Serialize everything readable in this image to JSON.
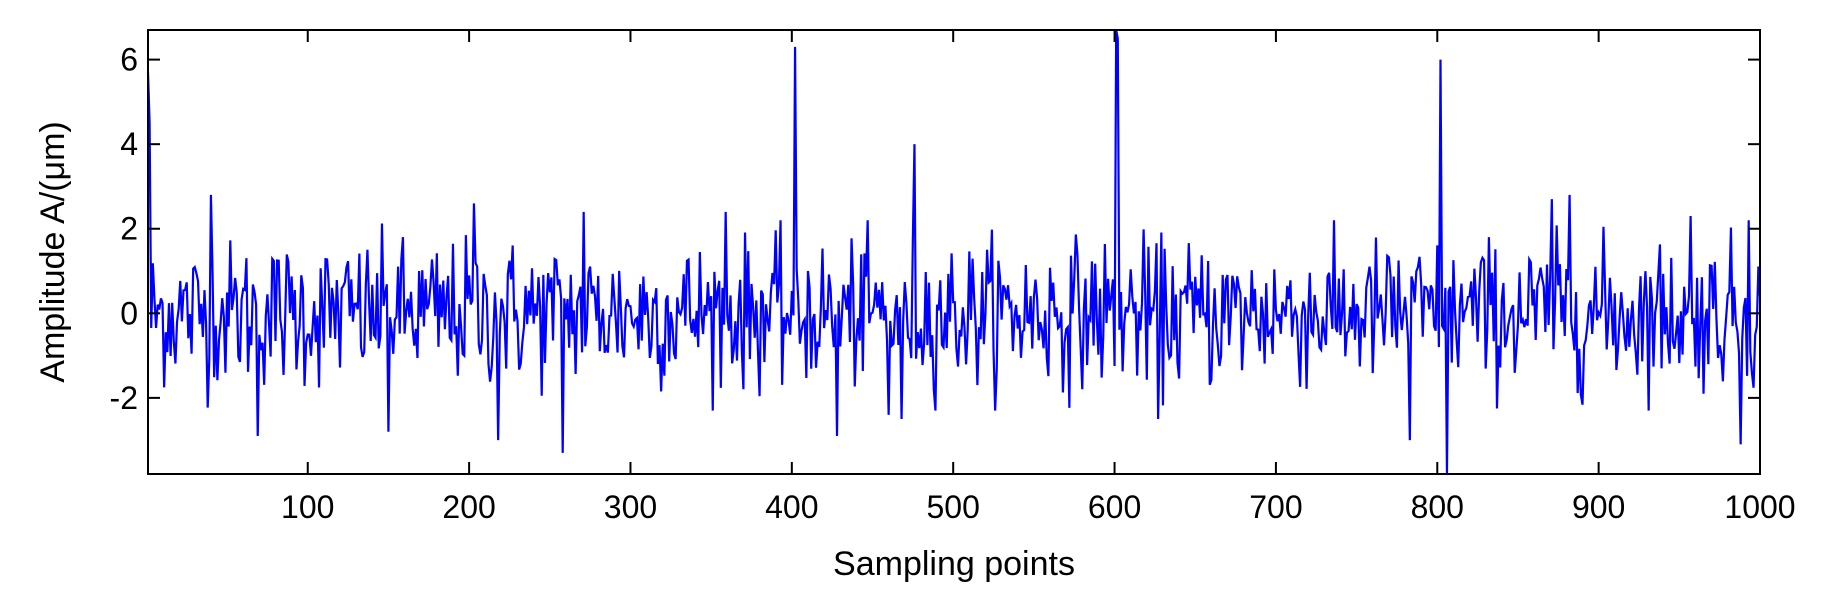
{
  "chart_data": {
    "type": "line",
    "xlabel": "Sampling points",
    "ylabel": "Amplitude A/(μm)",
    "xlim": [
      1,
      1000
    ],
    "ylim": [
      -3.8,
      6.7
    ],
    "xticks": [
      100,
      200,
      300,
      400,
      500,
      600,
      700,
      800,
      900,
      1000
    ],
    "yticks": [
      -2,
      0,
      2,
      4,
      6
    ],
    "grid": false,
    "legend": "none",
    "line_color": "#0000ff",
    "noise_amplitude_typical": 1.0,
    "series": [
      {
        "spikes": [
          {
            "x": 1,
            "y": 5.7
          },
          {
            "x": 2,
            "y": 4.5
          },
          {
            "x": 402,
            "y": 6.3
          },
          {
            "x": 476,
            "y": 4.0
          },
          {
            "x": 601,
            "y": 6.7
          },
          {
            "x": 602,
            "y": 6.5
          },
          {
            "x": 802,
            "y": 6.0
          },
          {
            "x": 806,
            "y": -3.8
          },
          {
            "x": 258,
            "y": -3.3
          },
          {
            "x": 428,
            "y": -2.9
          },
          {
            "x": 69,
            "y": -2.9
          },
          {
            "x": 783,
            "y": -3.0
          },
          {
            "x": 988,
            "y": -3.1
          },
          {
            "x": 40,
            "y": 2.8
          },
          {
            "x": 203,
            "y": 2.6
          },
          {
            "x": 271,
            "y": 2.4
          },
          {
            "x": 359,
            "y": 2.4
          },
          {
            "x": 871,
            "y": 2.7
          },
          {
            "x": 882,
            "y": 2.8
          },
          {
            "x": 957,
            "y": 2.3
          },
          {
            "x": 993,
            "y": 2.2
          },
          {
            "x": 627,
            "y": -2.5
          },
          {
            "x": 460,
            "y": -2.4
          },
          {
            "x": 468,
            "y": -2.5
          },
          {
            "x": 218,
            "y": -3.0
          },
          {
            "x": 150,
            "y": -2.8
          }
        ]
      }
    ]
  }
}
